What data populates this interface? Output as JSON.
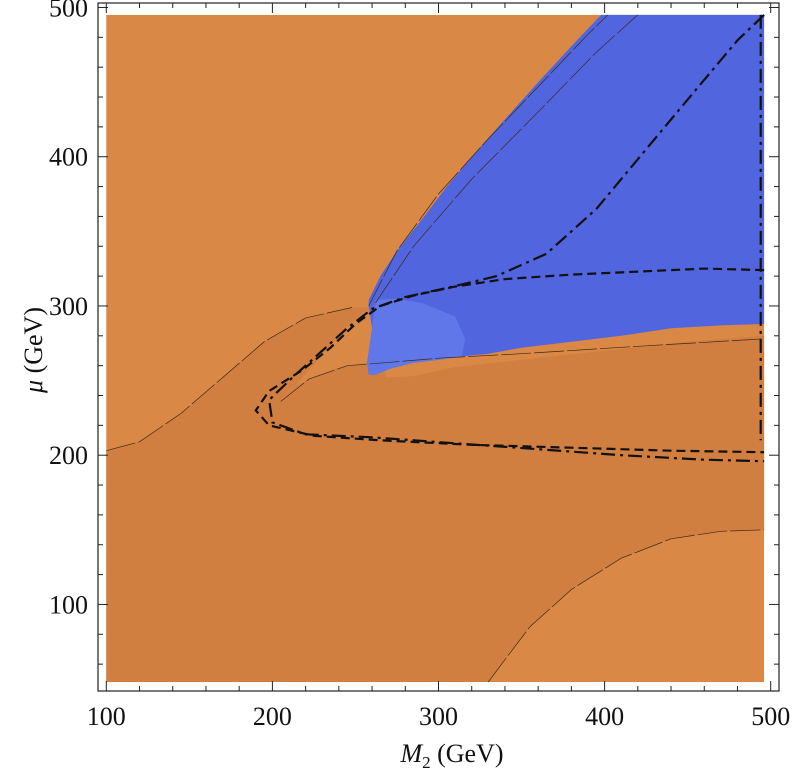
{
  "chart_data": {
    "type": "contour",
    "title": "",
    "xlabel_symbol": "M",
    "xlabel_sub": "2",
    "xlabel_unit": " (GeV)",
    "ylabel_symbol": "μ",
    "ylabel_unit": " (GeV)",
    "xlim": [
      95,
      505
    ],
    "ylim": [
      42,
      503
    ],
    "xticks": [
      100,
      200,
      300,
      400,
      500
    ],
    "yticks": [
      100,
      200,
      300,
      400,
      500
    ],
    "xtick_labels": [
      "100",
      "200",
      "300",
      "400",
      "500"
    ],
    "ytick_labels": [
      "100",
      "200",
      "300",
      "400",
      "500"
    ],
    "data_region": {
      "x": [
        100,
        496
      ],
      "y": [
        48,
        495
      ]
    },
    "colors": {
      "light_orange": "#d98845",
      "dark_orange": "#d07f41",
      "blue": "#5166de",
      "light_blue": "#5f77e8"
    },
    "regions": [
      {
        "name": "dark-orange-band",
        "color": "dark_orange",
        "points": [
          [
            100,
            48
          ],
          [
            100,
            203
          ],
          [
            120,
            209
          ],
          [
            145,
            228
          ],
          [
            170,
            252
          ],
          [
            195,
            276
          ],
          [
            220,
            292
          ],
          [
            248,
            299
          ],
          [
            262,
            299
          ],
          [
            275,
            291
          ],
          [
            300,
            287
          ],
          [
            350,
            286
          ],
          [
            400,
            283
          ],
          [
            450,
            281
          ],
          [
            496,
            280
          ],
          [
            496,
            150
          ],
          [
            470,
            149
          ],
          [
            440,
            144
          ],
          [
            410,
            131
          ],
          [
            380,
            110
          ],
          [
            355,
            85
          ],
          [
            338,
            60
          ],
          [
            330,
            48
          ]
        ]
      },
      {
        "name": "light-orange-inner-wedge",
        "color": "light_orange",
        "points": [
          [
            205,
            236
          ],
          [
            210,
            244
          ],
          [
            222,
            251
          ],
          [
            238,
            258
          ],
          [
            255,
            262
          ],
          [
            268,
            260
          ],
          [
            268,
            252
          ],
          [
            285,
            253
          ],
          [
            310,
            259
          ],
          [
            350,
            264
          ],
          [
            400,
            270
          ],
          [
            450,
            276
          ],
          [
            496,
            280
          ],
          [
            450,
            281
          ],
          [
            400,
            283
          ],
          [
            350,
            286
          ],
          [
            300,
            287
          ],
          [
            275,
            291
          ],
          [
            262,
            299
          ],
          [
            255,
            296
          ],
          [
            246,
            287
          ],
          [
            232,
            270
          ],
          [
            218,
            252
          ]
        ]
      },
      {
        "name": "blue-region",
        "color": "blue",
        "points": [
          [
            258,
            304
          ],
          [
            265,
            320
          ],
          [
            275,
            337
          ],
          [
            290,
            358
          ],
          [
            305,
            380
          ],
          [
            320,
            400
          ],
          [
            340,
            425
          ],
          [
            360,
            450
          ],
          [
            385,
            480
          ],
          [
            398,
            495
          ],
          [
            496,
            495
          ],
          [
            496,
            288
          ],
          [
            470,
            287
          ],
          [
            440,
            285
          ],
          [
            410,
            280
          ],
          [
            380,
            276
          ],
          [
            350,
            272
          ],
          [
            330,
            268
          ],
          [
            312,
            266
          ],
          [
            300,
            264
          ],
          [
            285,
            262
          ],
          [
            271,
            258
          ],
          [
            262,
            254
          ],
          [
            258,
            254
          ],
          [
            257,
            262
          ],
          [
            260,
            285
          ],
          [
            258,
            300
          ]
        ]
      },
      {
        "name": "light-blue-lobe",
        "color": "light_blue",
        "points": [
          [
            262,
            304
          ],
          [
            274,
            305
          ],
          [
            290,
            302
          ],
          [
            310,
            293
          ],
          [
            316,
            278
          ],
          [
            314,
            266
          ],
          [
            300,
            264
          ],
          [
            285,
            262
          ],
          [
            271,
            258
          ],
          [
            262,
            254
          ],
          [
            258,
            254
          ],
          [
            257,
            262
          ],
          [
            260,
            285
          ]
        ]
      }
    ],
    "curves": [
      {
        "name": "dashed-curve",
        "style": "dashed",
        "points": [
          [
            496,
            324
          ],
          [
            460,
            325
          ],
          [
            420,
            323
          ],
          [
            380,
            321
          ],
          [
            340,
            318
          ],
          [
            310,
            313
          ],
          [
            285,
            307
          ],
          [
            265,
            300
          ],
          [
            250,
            288
          ],
          [
            235,
            272
          ],
          [
            218,
            257
          ],
          [
            198,
            243
          ],
          [
            190,
            230
          ],
          [
            198,
            220
          ],
          [
            225,
            213
          ],
          [
            265,
            210
          ],
          [
            320,
            207
          ],
          [
            380,
            205
          ],
          [
            440,
            203
          ],
          [
            496,
            202
          ]
        ]
      },
      {
        "name": "dash-dot-curve",
        "style": "dashdot",
        "points": [
          [
            496,
            495
          ],
          [
            480,
            478
          ],
          [
            455,
            445
          ],
          [
            425,
            405
          ],
          [
            395,
            365
          ],
          [
            365,
            335
          ],
          [
            335,
            320
          ],
          [
            305,
            312
          ],
          [
            280,
            306
          ],
          [
            260,
            298
          ],
          [
            245,
            285
          ],
          [
            228,
            268
          ],
          [
            212,
            252
          ],
          [
            198,
            237
          ],
          [
            200,
            222
          ],
          [
            220,
            214
          ],
          [
            260,
            212
          ],
          [
            310,
            208
          ],
          [
            360,
            204
          ],
          [
            410,
            200
          ],
          [
            460,
            197
          ],
          [
            496,
            196
          ]
        ]
      },
      {
        "name": "long-dash-dot-vertical",
        "style": "dashdot",
        "points": [
          [
            494,
            495
          ],
          [
            494,
            420
          ],
          [
            494,
            340
          ],
          [
            494,
            260
          ],
          [
            494,
            210
          ]
        ]
      },
      {
        "name": "thin-contour-upper-edge",
        "style": "thin",
        "points": [
          [
            258,
            300
          ],
          [
            275,
            337
          ],
          [
            300,
            375
          ],
          [
            330,
            412
          ],
          [
            360,
            447
          ],
          [
            390,
            482
          ],
          [
            402,
            495
          ]
        ]
      },
      {
        "name": "thin-contour-upper-edge-2",
        "style": "thin",
        "points": [
          [
            262,
            302
          ],
          [
            285,
            340
          ],
          [
            320,
            385
          ],
          [
            360,
            430
          ],
          [
            395,
            470
          ],
          [
            420,
            495
          ]
        ]
      },
      {
        "name": "thin-contour-band-upper",
        "style": "thin",
        "points": [
          [
            100,
            203
          ],
          [
            120,
            209
          ],
          [
            145,
            228
          ],
          [
            170,
            252
          ],
          [
            195,
            276
          ],
          [
            220,
            292
          ],
          [
            248,
            299
          ]
        ]
      },
      {
        "name": "thin-contour-lower-right",
        "style": "thin",
        "points": [
          [
            330,
            48
          ],
          [
            338,
            60
          ],
          [
            355,
            85
          ],
          [
            380,
            110
          ],
          [
            410,
            131
          ],
          [
            440,
            144
          ],
          [
            470,
            149
          ],
          [
            496,
            150
          ]
        ]
      },
      {
        "name": "thin-contour-inner",
        "style": "thin",
        "points": [
          [
            205,
            236
          ],
          [
            222,
            251
          ],
          [
            245,
            260
          ],
          [
            268,
            262
          ],
          [
            300,
            265
          ],
          [
            350,
            268
          ],
          [
            420,
            273
          ],
          [
            496,
            278
          ]
        ]
      }
    ]
  }
}
